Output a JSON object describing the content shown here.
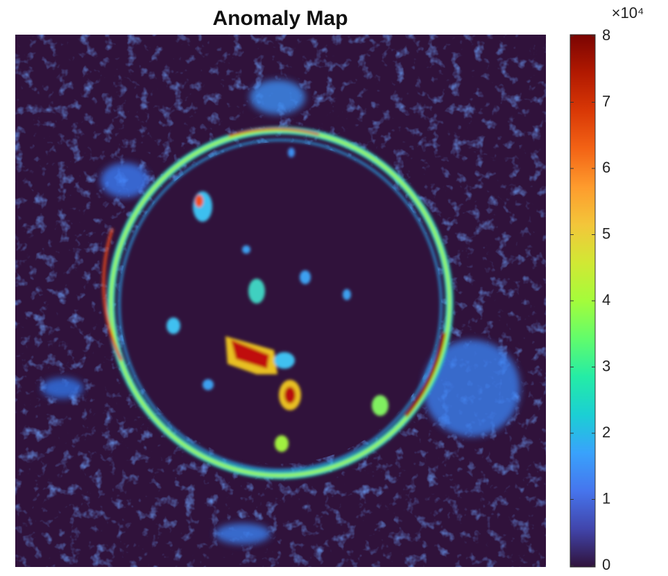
{
  "chart_data": {
    "type": "heatmap",
    "title": "Anomaly Map",
    "colormap": "turbo",
    "colorbar": true,
    "colorbar_exponent": "×10⁴",
    "clim": [
      0,
      80000
    ],
    "cticks": [
      {
        "value": 0,
        "label": "0"
      },
      {
        "value": 10000,
        "label": "1"
      },
      {
        "value": 20000,
        "label": "2"
      },
      {
        "value": 30000,
        "label": "3"
      },
      {
        "value": 40000,
        "label": "4"
      },
      {
        "value": 50000,
        "label": "5"
      },
      {
        "value": 60000,
        "label": "6"
      },
      {
        "value": 70000,
        "label": "7"
      },
      {
        "value": 80000,
        "label": "8"
      }
    ]
  }
}
